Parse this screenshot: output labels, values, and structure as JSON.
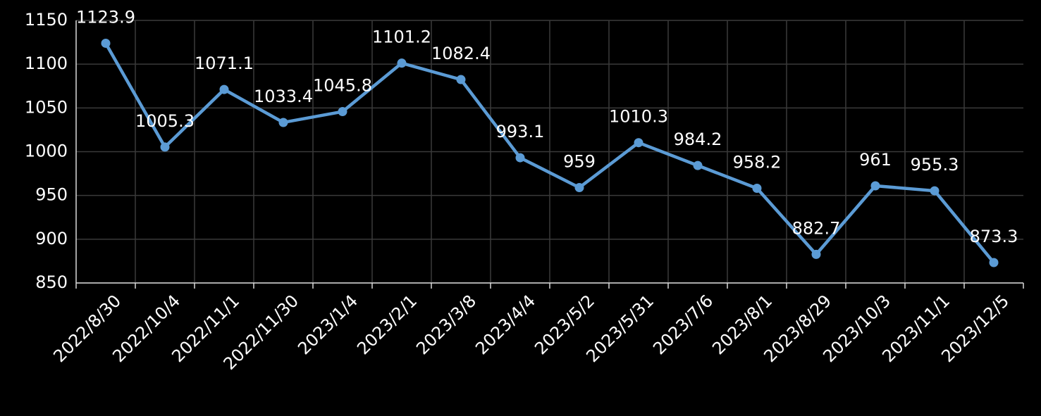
{
  "chart_data": {
    "type": "line",
    "categories": [
      "2022/8/30",
      "2022/10/4",
      "2022/11/1",
      "2022/11/30",
      "2023/1/4",
      "2023/2/1",
      "2023/3/8",
      "2023/4/4",
      "2023/5/2",
      "2023/5/31",
      "2023/7/6",
      "2023/8/1",
      "2023/8/29",
      "2023/10/3",
      "2023/11/1",
      "2023/12/5"
    ],
    "values": [
      1123.9,
      1005.3,
      1071.1,
      1033.4,
      1045.8,
      1101.2,
      1082.4,
      993.1,
      959,
      1010.3,
      984.2,
      958.2,
      882.7,
      961,
      955.3,
      873.3
    ],
    "color": "#5b9bd5",
    "ylim": [
      850,
      1150
    ],
    "yticks": [
      850,
      900,
      950,
      1000,
      1050,
      1100,
      1150
    ],
    "grid": true
  }
}
